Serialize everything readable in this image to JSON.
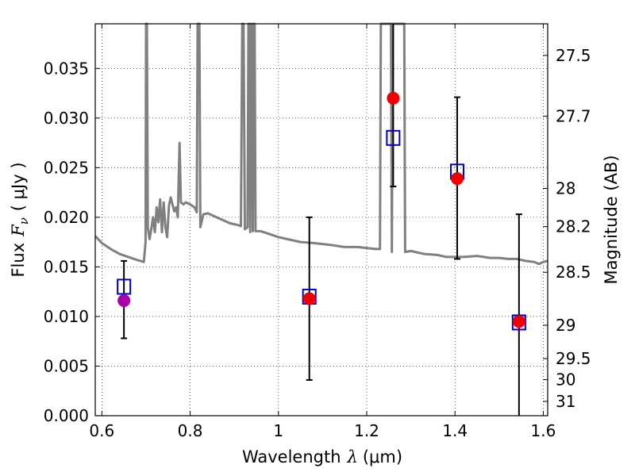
{
  "chart_data": {
    "type": "scatter",
    "xlabel_text": "Wavelength",
    "xlabel_symbol": "λ",
    "xlabel_unit": "(μm)",
    "ylabel_text": "Flux",
    "ylabel_symbol": "F",
    "ylabel_subscript": "ν",
    "ylabel_unit": "( μJy )",
    "y2label": "Magnitude (AB)",
    "xlim": [
      0.585,
      1.61
    ],
    "ylim": [
      0.0,
      0.0395
    ],
    "grid": true,
    "xticks": [
      {
        "value": 0.6,
        "label": "0.6"
      },
      {
        "value": 0.8,
        "label": "0.8"
      },
      {
        "value": 1.0,
        "label": "1"
      },
      {
        "value": 1.2,
        "label": "1.2"
      },
      {
        "value": 1.4,
        "label": "1.4"
      },
      {
        "value": 1.6,
        "label": "1.6"
      }
    ],
    "yticks": [
      {
        "value": 0.0,
        "label": "0.000"
      },
      {
        "value": 0.005,
        "label": "0.005"
      },
      {
        "value": 0.01,
        "label": "0.010"
      },
      {
        "value": 0.015,
        "label": "0.015"
      },
      {
        "value": 0.02,
        "label": "0.020"
      },
      {
        "value": 0.025,
        "label": "0.025"
      },
      {
        "value": 0.03,
        "label": "0.030"
      },
      {
        "value": 0.035,
        "label": "0.035"
      }
    ],
    "mag_ticks": [
      {
        "value": 27.5,
        "label": "27.5"
      },
      {
        "value": 27.7,
        "label": "27.7"
      },
      {
        "value": 28.0,
        "label": "28"
      },
      {
        "value": 28.2,
        "label": "28.2"
      },
      {
        "value": 28.5,
        "label": "28.5"
      },
      {
        "value": 29.0,
        "label": "29"
      },
      {
        "value": 29.5,
        "label": "29.5"
      },
      {
        "value": 30.0,
        "label": "30"
      },
      {
        "value": 31.0,
        "label": "31"
      }
    ],
    "series": [
      {
        "kind": "model_sed",
        "color": "#808080",
        "points": [
          [
            0.585,
            0.0181
          ],
          [
            0.6,
            0.0174
          ],
          [
            0.62,
            0.0168
          ],
          [
            0.64,
            0.0163
          ],
          [
            0.66,
            0.016
          ],
          [
            0.68,
            0.0157
          ],
          [
            0.695,
            0.0155
          ],
          [
            0.699,
            0.0175
          ],
          [
            0.7,
            0.0395
          ],
          [
            0.702,
            0.0395
          ],
          [
            0.704,
            0.019
          ],
          [
            0.708,
            0.0178
          ],
          [
            0.712,
            0.0188
          ],
          [
            0.716,
            0.02
          ],
          [
            0.72,
            0.0185
          ],
          [
            0.724,
            0.021
          ],
          [
            0.728,
            0.0195
          ],
          [
            0.732,
            0.0218
          ],
          [
            0.736,
            0.0185
          ],
          [
            0.74,
            0.0215
          ],
          [
            0.744,
            0.019
          ],
          [
            0.748,
            0.018
          ],
          [
            0.752,
            0.0212
          ],
          [
            0.756,
            0.022
          ],
          [
            0.76,
            0.0213
          ],
          [
            0.764,
            0.0206
          ],
          [
            0.768,
            0.021
          ],
          [
            0.772,
            0.02
          ],
          [
            0.776,
            0.0275
          ],
          [
            0.779,
            0.0215
          ],
          [
            0.785,
            0.0213
          ],
          [
            0.79,
            0.0215
          ],
          [
            0.8,
            0.0213
          ],
          [
            0.81,
            0.021
          ],
          [
            0.815,
            0.0205
          ],
          [
            0.817,
            0.0395
          ],
          [
            0.821,
            0.0395
          ],
          [
            0.823,
            0.019
          ],
          [
            0.83,
            0.0203
          ],
          [
            0.84,
            0.0204
          ],
          [
            0.85,
            0.0202
          ],
          [
            0.86,
            0.02
          ],
          [
            0.87,
            0.0198
          ],
          [
            0.88,
            0.0196
          ],
          [
            0.89,
            0.0194
          ],
          [
            0.9,
            0.0193
          ],
          [
            0.91,
            0.0192
          ],
          [
            0.915,
            0.0191
          ],
          [
            0.918,
            0.0395
          ],
          [
            0.921,
            0.0395
          ],
          [
            0.924,
            0.0188
          ],
          [
            0.93,
            0.019
          ],
          [
            0.932,
            0.0395
          ],
          [
            0.934,
            0.0395
          ],
          [
            0.936,
            0.0185
          ],
          [
            0.938,
            0.0395
          ],
          [
            0.94,
            0.0395
          ],
          [
            0.942,
            0.0186
          ],
          [
            0.944,
            0.0395
          ],
          [
            0.946,
            0.0395
          ],
          [
            0.948,
            0.0186
          ],
          [
            0.95,
            0.0186
          ],
          [
            0.96,
            0.0186
          ],
          [
            0.98,
            0.0183
          ],
          [
            1.0,
            0.018
          ],
          [
            1.02,
            0.0178
          ],
          [
            1.05,
            0.0175
          ],
          [
            1.08,
            0.0174
          ],
          [
            1.1,
            0.0173
          ],
          [
            1.12,
            0.0172
          ],
          [
            1.15,
            0.017
          ],
          [
            1.18,
            0.017
          ],
          [
            1.2,
            0.0169
          ],
          [
            1.22,
            0.0168
          ],
          [
            1.23,
            0.0168
          ],
          [
            1.232,
            0.0395
          ],
          [
            1.255,
            0.0395
          ],
          [
            1.257,
            0.0165
          ],
          [
            1.259,
            0.0395
          ],
          [
            1.285,
            0.0395
          ],
          [
            1.287,
            0.0165
          ],
          [
            1.3,
            0.0166
          ],
          [
            1.33,
            0.0163
          ],
          [
            1.36,
            0.0162
          ],
          [
            1.38,
            0.016
          ],
          [
            1.4,
            0.016
          ],
          [
            1.42,
            0.016
          ],
          [
            1.45,
            0.0161
          ],
          [
            1.48,
            0.0159
          ],
          [
            1.5,
            0.0159
          ],
          [
            1.52,
            0.0158
          ],
          [
            1.54,
            0.0158
          ],
          [
            1.56,
            0.0156
          ],
          [
            1.58,
            0.0155
          ],
          [
            1.59,
            0.0153
          ],
          [
            1.6,
            0.0155
          ],
          [
            1.61,
            0.0156
          ]
        ]
      },
      {
        "kind": "model_band_flux",
        "marker": "open-square",
        "color": "#0000cc",
        "points": [
          [
            0.65,
            0.013
          ],
          [
            1.07,
            0.012
          ],
          [
            1.26,
            0.028
          ],
          [
            1.405,
            0.0246
          ],
          [
            1.545,
            0.0094
          ]
        ]
      },
      {
        "kind": "observed_flux",
        "marker": "circle",
        "points": [
          {
            "x": 0.65,
            "y": 0.0116,
            "lo": 0.0078,
            "hi": 0.0156,
            "color": "#aa00aa"
          },
          {
            "x": 1.07,
            "y": 0.0118,
            "lo": 0.0036,
            "hi": 0.02,
            "color": "#ee0000"
          },
          {
            "x": 1.26,
            "y": 0.032,
            "lo": 0.0231,
            "hi": 0.0395,
            "color": "#ee0000"
          },
          {
            "x": 1.405,
            "y": 0.0239,
            "lo": 0.0158,
            "hi": 0.0321,
            "color": "#ee0000"
          },
          {
            "x": 1.545,
            "y": 0.0095,
            "lo": 0.0,
            "hi": 0.0203,
            "color": "#ee0000"
          }
        ]
      }
    ]
  }
}
